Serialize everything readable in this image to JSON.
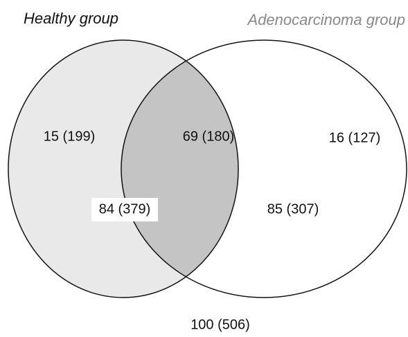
{
  "sets": [
    {
      "name": "Healthy group"
    },
    {
      "name": "Adenocarcinoma group"
    }
  ],
  "regions": {
    "healthy_only": "15 (199)",
    "both": "69 (180)",
    "adeno_only": "16 (127)",
    "healthy_total": "84 (379)",
    "adeno_total": "85 (307)",
    "all": "100 (506)"
  }
}
